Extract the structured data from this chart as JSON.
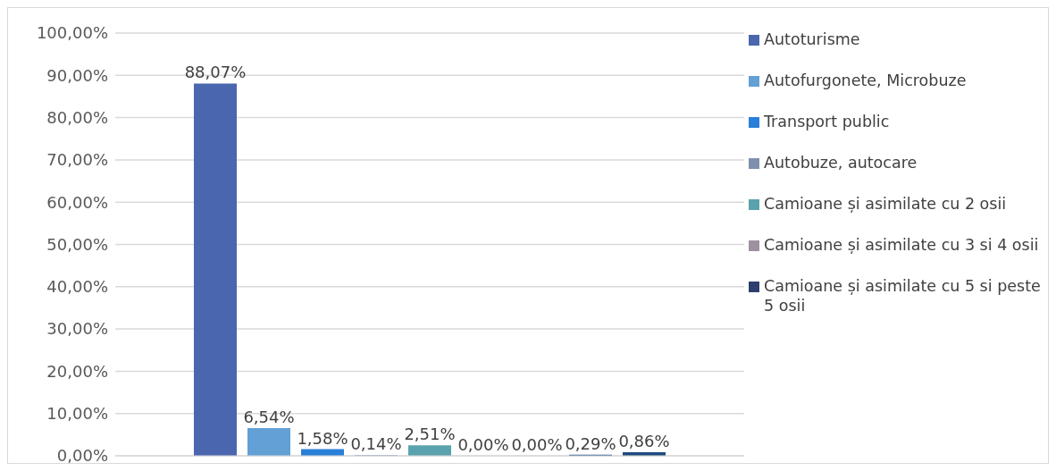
{
  "chart_data": {
    "type": "bar",
    "categories": [
      null
    ],
    "series": [
      {
        "name": "Autoturisme",
        "color": "#4a66ae",
        "values": [
          88.07
        ],
        "value_labels": [
          "88,07%"
        ]
      },
      {
        "name": "Autofurgonete, Microbuze",
        "color": "#62a0d6",
        "values": [
          6.54
        ],
        "value_labels": [
          "6,54%"
        ]
      },
      {
        "name": "Transport public",
        "color": "#2a7fd8",
        "values": [
          1.58
        ],
        "value_labels": [
          "1,58%"
        ]
      },
      {
        "name": "Autobuze, autocare",
        "color": "#7f90ae",
        "values": [
          0.14
        ],
        "value_labels": [
          "0,14%"
        ]
      },
      {
        "name": "Camioane și asimilate cu 2 osii",
        "color": "#5aa2ae",
        "values": [
          2.51
        ],
        "value_labels": [
          "2,51%"
        ]
      },
      {
        "name": "Camioane și asimilate cu 3 si 4 osii",
        "color": "#9e90a0",
        "values": [
          0.0
        ],
        "value_labels": [
          "0,00%"
        ]
      },
      {
        "name": "Camioane și asimilate cu 5 si peste 5 osii",
        "color": "#2c3f6e",
        "values": [
          0.0
        ],
        "value_labels": [
          "0,00%"
        ]
      },
      {
        "color": "#1f5592",
        "values": [
          0.29
        ],
        "value_labels": [
          "0,29%"
        ]
      },
      {
        "color": "#1e4a80",
        "values": [
          0.86
        ],
        "value_labels": [
          "0,86%"
        ]
      }
    ],
    "ylim": [
      0,
      100
    ],
    "yticks": [
      {
        "value": 0,
        "label": "0,00%"
      },
      {
        "value": 10,
        "label": "10,00%"
      },
      {
        "value": 20,
        "label": "20,00%"
      },
      {
        "value": 30,
        "label": "30,00%"
      },
      {
        "value": 40,
        "label": "40,00%"
      },
      {
        "value": 50,
        "label": "50,00%"
      },
      {
        "value": 60,
        "label": "60,00%"
      },
      {
        "value": 70,
        "label": "70,00%"
      },
      {
        "value": 80,
        "label": "80,00%"
      },
      {
        "value": 90,
        "label": "90,00%"
      },
      {
        "value": 100,
        "label": "100,00%"
      }
    ],
    "grid": "y",
    "legend": "right"
  }
}
